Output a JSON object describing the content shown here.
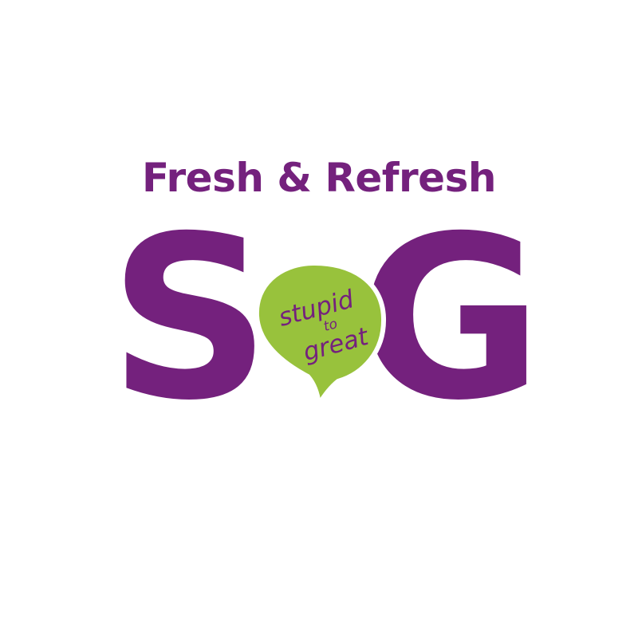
{
  "tagline": "Fresh & Refresh",
  "logo": {
    "letter_left": "S",
    "letter_right": "G",
    "bubble_line1": "stupid",
    "bubble_line2": "to",
    "bubble_line3": "great"
  },
  "colors": {
    "background": "#ffffff",
    "brand_purple": "#74217d",
    "bubble_green": "#98c23c"
  }
}
